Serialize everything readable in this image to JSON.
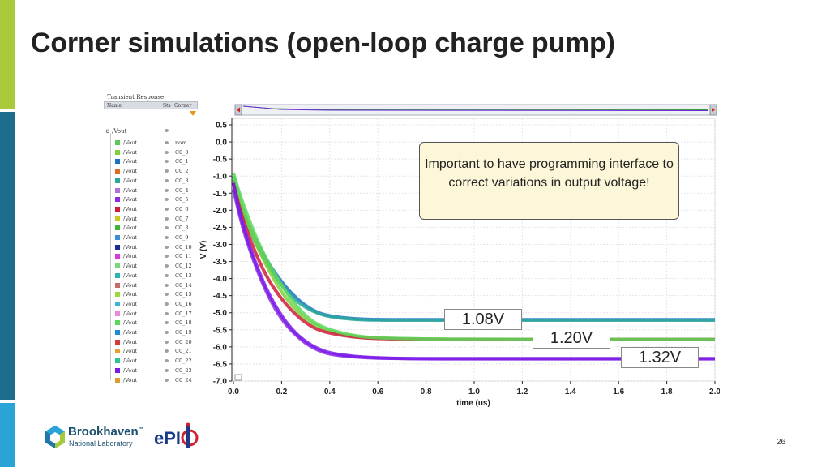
{
  "slide": {
    "title": "Corner simulations (open-loop charge pump)",
    "page_number": "26",
    "accent_colors": [
      "#a8c93a",
      "#1d6d8c",
      "#2aa4d6"
    ]
  },
  "browser": {
    "title": "Transient Response",
    "columns": [
      "Name",
      "Sts",
      "Corner"
    ],
    "parent_signal": "/Vout",
    "signals": [
      {
        "name": "/Vout",
        "corner": "nom",
        "color": "#5ac85a"
      },
      {
        "name": "/Vout",
        "corner": "C0_0",
        "color": "#7dd23c"
      },
      {
        "name": "/Vout",
        "corner": "C0_1",
        "color": "#1a73c8"
      },
      {
        "name": "/Vout",
        "corner": "C0_2",
        "color": "#e06a1e"
      },
      {
        "name": "/Vout",
        "corner": "C0_3",
        "color": "#2aa89a"
      },
      {
        "name": "/Vout",
        "corner": "C0_4",
        "color": "#b070d8"
      },
      {
        "name": "/Vout",
        "corner": "C0_5",
        "color": "#8a2be2"
      },
      {
        "name": "/Vout",
        "corner": "C0_6",
        "color": "#d01c3a"
      },
      {
        "name": "/Vout",
        "corner": "C0_7",
        "color": "#c8c81e"
      },
      {
        "name": "/Vout",
        "corner": "C0_8",
        "color": "#3cb43c"
      },
      {
        "name": "/Vout",
        "corner": "C0_9",
        "color": "#3b8fd8"
      },
      {
        "name": "/Vout",
        "corner": "C0_10",
        "color": "#1a2a9a"
      },
      {
        "name": "/Vout",
        "corner": "C0_11",
        "color": "#d83ad8"
      },
      {
        "name": "/Vout",
        "corner": "C0_12",
        "color": "#7ad87a"
      },
      {
        "name": "/Vout",
        "corner": "C0_13",
        "color": "#2ab4b4"
      },
      {
        "name": "/Vout",
        "corner": "C0_14",
        "color": "#c86a6a"
      },
      {
        "name": "/Vout",
        "corner": "C0_15",
        "color": "#a0d83c"
      },
      {
        "name": "/Vout",
        "corner": "C0_16",
        "color": "#3ab4d8"
      },
      {
        "name": "/Vout",
        "corner": "C0_17",
        "color": "#e88ad8"
      },
      {
        "name": "/Vout",
        "corner": "C0_18",
        "color": "#5ad85a"
      },
      {
        "name": "/Vout",
        "corner": "C0_19",
        "color": "#1a8ad8"
      },
      {
        "name": "/Vout",
        "corner": "C0_20",
        "color": "#d83a3a"
      },
      {
        "name": "/Vout",
        "corner": "C0_21",
        "color": "#e8a02a"
      },
      {
        "name": "/Vout",
        "corner": "C0_22",
        "color": "#2ac88a"
      },
      {
        "name": "/Vout",
        "corner": "C0_23",
        "color": "#7a1ae8"
      },
      {
        "name": "/Vout",
        "corner": "C0_24",
        "color": "#d8a02a"
      }
    ]
  },
  "callout": {
    "text": "Important to have programming interface to correct variations in output voltage!"
  },
  "voltage_labels": [
    "1.08V",
    "1.20V",
    "1.32V"
  ],
  "chart_data": {
    "type": "line",
    "xlabel": "time (us)",
    "ylabel": "V (V)",
    "xlim": [
      0.0,
      2.0
    ],
    "ylim": [
      -7.0,
      0.5
    ],
    "x_ticks": [
      "0.0",
      "0.2",
      "0.4",
      "0.6",
      "0.8",
      "1.0",
      "1.2",
      "1.4",
      "1.6",
      "1.8",
      "2.0"
    ],
    "y_ticks": [
      "0.5",
      "0.0",
      "-0.5",
      "-1.0",
      "-1.5",
      "-2.0",
      "-2.5",
      "-3.0",
      "-3.5",
      "-4.0",
      "-4.5",
      "-5.0",
      "-5.5",
      "-6.0",
      "-6.5",
      "-7.0"
    ],
    "grid": true,
    "series": [
      {
        "color": "#1a73c8",
        "x": [
          0.0,
          0.02,
          0.05,
          0.1,
          0.15,
          0.2,
          0.25,
          0.3,
          0.35,
          0.4,
          0.5,
          0.6,
          0.8,
          1.0,
          1.5,
          2.0
        ],
        "values": [
          -1.0,
          -1.6,
          -2.2,
          -3.0,
          -3.6,
          -4.1,
          -4.5,
          -4.8,
          -5.0,
          -5.1,
          -5.18,
          -5.2,
          -5.2,
          -5.2,
          -5.2,
          -5.2
        ]
      },
      {
        "color": "#2aa89a",
        "x": [
          0.0,
          0.02,
          0.05,
          0.1,
          0.15,
          0.2,
          0.25,
          0.3,
          0.35,
          0.4,
          0.5,
          0.6,
          0.8,
          1.0,
          1.5,
          2.0
        ],
        "values": [
          -1.1,
          -1.7,
          -2.3,
          -3.1,
          -3.7,
          -4.2,
          -4.6,
          -4.85,
          -5.02,
          -5.12,
          -5.2,
          -5.22,
          -5.22,
          -5.22,
          -5.22,
          -5.22
        ]
      },
      {
        "color": "#7dd23c",
        "x": [
          0.0,
          0.02,
          0.05,
          0.1,
          0.15,
          0.2,
          0.25,
          0.3,
          0.35,
          0.4,
          0.5,
          0.6,
          0.8,
          1.0,
          1.5,
          2.0
        ],
        "values": [
          -1.0,
          -1.5,
          -2.2,
          -3.1,
          -3.8,
          -4.4,
          -4.85,
          -5.2,
          -5.4,
          -5.55,
          -5.7,
          -5.75,
          -5.77,
          -5.78,
          -5.78,
          -5.78
        ]
      },
      {
        "color": "#d01c3a",
        "x": [
          0.0,
          0.02,
          0.05,
          0.1,
          0.15,
          0.2,
          0.25,
          0.3,
          0.35,
          0.4,
          0.5,
          0.6,
          0.8,
          1.0,
          1.5,
          2.0
        ],
        "values": [
          -1.2,
          -1.8,
          -2.5,
          -3.4,
          -4.1,
          -4.6,
          -5.0,
          -5.3,
          -5.5,
          -5.6,
          -5.72,
          -5.76,
          -5.78,
          -5.78,
          -5.78,
          -5.78
        ]
      },
      {
        "color": "#5ad85a",
        "x": [
          0.0,
          0.02,
          0.05,
          0.1,
          0.15,
          0.2,
          0.25,
          0.3,
          0.35,
          0.4,
          0.5,
          0.6,
          0.8,
          1.0,
          1.5,
          2.0
        ],
        "values": [
          -0.9,
          -1.4,
          -2.0,
          -2.9,
          -3.6,
          -4.2,
          -4.7,
          -5.1,
          -5.35,
          -5.5,
          -5.68,
          -5.74,
          -5.77,
          -5.78,
          -5.78,
          -5.78
        ]
      },
      {
        "color": "#8a2be2",
        "x": [
          0.0,
          0.02,
          0.05,
          0.1,
          0.15,
          0.2,
          0.25,
          0.3,
          0.35,
          0.4,
          0.5,
          0.6,
          0.7,
          0.8,
          1.0,
          1.5,
          2.0
        ],
        "values": [
          -1.4,
          -2.0,
          -2.8,
          -3.8,
          -4.6,
          -5.2,
          -5.6,
          -5.9,
          -6.1,
          -6.22,
          -6.3,
          -6.33,
          -6.34,
          -6.34,
          -6.34,
          -6.34,
          -6.34
        ]
      },
      {
        "color": "#7a1ae8",
        "x": [
          0.0,
          0.02,
          0.05,
          0.1,
          0.15,
          0.2,
          0.25,
          0.3,
          0.35,
          0.4,
          0.5,
          0.6,
          0.7,
          0.8,
          1.0,
          1.5,
          2.0
        ],
        "values": [
          -1.2,
          -1.9,
          -2.7,
          -3.7,
          -4.5,
          -5.1,
          -5.55,
          -5.85,
          -6.05,
          -6.18,
          -6.28,
          -6.32,
          -6.34,
          -6.35,
          -6.35,
          -6.35,
          -6.35
        ]
      }
    ]
  }
}
